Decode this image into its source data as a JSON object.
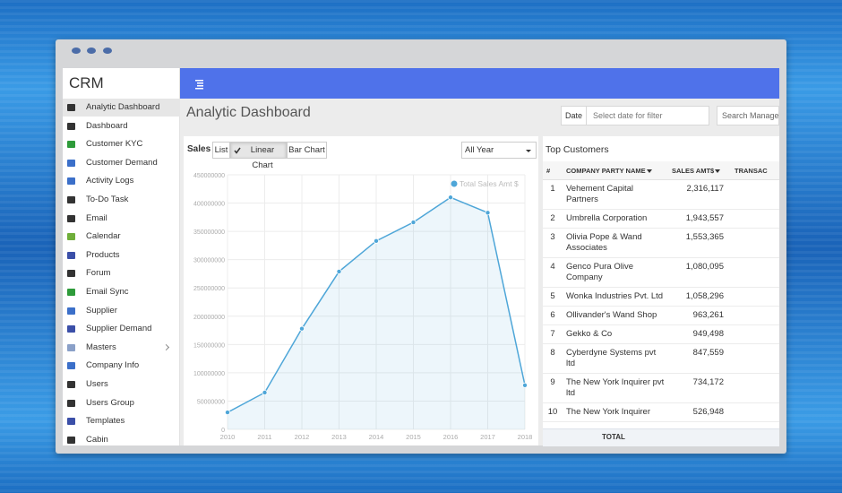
{
  "window": {
    "app_name": "CRM",
    "page_title": "Analytic Dashboard",
    "date_label": "Date",
    "date_placeholder": "Select date for filter",
    "search_placeholder": "Search Manage"
  },
  "sidebar": [
    "Analytic Dashboard",
    "Dashboard",
    "Customer KYC",
    "Customer Demand",
    "Activity Logs",
    "To-Do Task",
    "Email",
    "Calendar",
    "Products",
    "Forum",
    "Email Sync",
    "Supplier",
    "Supplier Demand",
    "Masters",
    "Company Info",
    "Users",
    "Users Group",
    "Templates",
    "Cabin"
  ],
  "sales_panel": {
    "title": "Sales",
    "views": [
      "List",
      "Linear Chart",
      "Bar Chart"
    ],
    "period": "All Year"
  },
  "chart_data": {
    "type": "line",
    "categories": [
      "2010",
      "2011",
      "2012",
      "2013",
      "2014",
      "2015",
      "2016",
      "2017",
      "2018"
    ],
    "series": [
      {
        "name": "Total Sales Amt $",
        "color": "#4ea6d8",
        "values": [
          30000000,
          65000000,
          178000000,
          279000000,
          333000000,
          366000000,
          410000000,
          383000000,
          78000000
        ]
      }
    ],
    "ylim": [
      0,
      450000000
    ],
    "yticks": [
      0,
      50000000,
      100000000,
      150000000,
      200000000,
      250000000,
      300000000,
      350000000,
      400000000,
      450000000
    ],
    "grid": true,
    "legend": "top-right"
  },
  "top_customers": {
    "title": "Top Customers",
    "columns": [
      "#",
      "COMPANY PARTY NAME",
      "SALES AMT$",
      "TRANSAC"
    ],
    "rows": [
      [
        "1",
        "Vehement Capital Partners",
        "2,316,117"
      ],
      [
        "2",
        "Umbrella Corporation",
        "1,943,557"
      ],
      [
        "3",
        "Olivia Pope & Wand Associates",
        "1,553,365"
      ],
      [
        "4",
        "Genco Pura Olive Company",
        "1,080,095"
      ],
      [
        "5",
        "Wonka Industries Pvt. Ltd",
        "1,058,296"
      ],
      [
        "6",
        "Ollivander's Wand Shop",
        "963,261"
      ],
      [
        "7",
        "Gekko & Co",
        "949,498"
      ],
      [
        "8",
        "Cyberdyne Systems pvt ltd",
        "847,559"
      ],
      [
        "9",
        "The New York Inquirer pvt ltd",
        "734,172"
      ],
      [
        "10",
        "The New York Inquirer",
        "526,948"
      ]
    ],
    "footer": "TOTAL"
  }
}
